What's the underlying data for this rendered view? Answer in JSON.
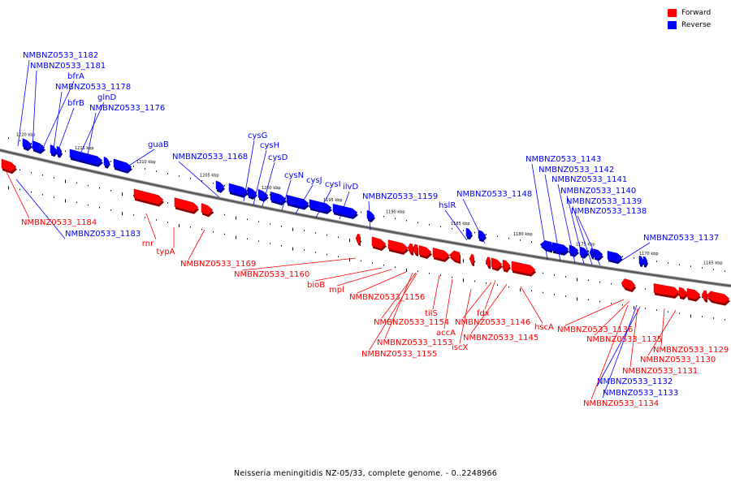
{
  "legend": {
    "forward": {
      "label": "Forward",
      "color": "#ff0000"
    },
    "reverse": {
      "label": "Reverse",
      "color": "#0000ff"
    }
  },
  "caption": "Neisseria meningitidis NZ-05/33, complete genome. - 0..2248966",
  "ticks": [
    "1220 kbp",
    "1215 kbp",
    "1210 kbp",
    "1205 kbp",
    "1200 kbp",
    "1195 kbp",
    "1190 kbp",
    "1185 kbp",
    "1180 kbp",
    "1175 kbp",
    "1170 kbp",
    "1165 kbp"
  ],
  "reverse_labels": [
    "NMBNZ0533_1182",
    "NMBNZ0533_1181",
    "bfrA",
    "NMBNZ0533_1178",
    "bfrB",
    "glnD",
    "NMBNZ0533_1176",
    "guaB",
    "NMBNZ0533_1168",
    "cysG",
    "cysH",
    "cysD",
    "cysN",
    "cysJ",
    "cysI",
    "ilvD",
    "NMBNZ0533_1159",
    "hslR",
    "NMBNZ0533_1148",
    "NMBNZ0533_1143",
    "NMBNZ0533_1142",
    "NMBNZ0533_1141",
    "NMBNZ0533_1140",
    "NMBNZ0533_1139",
    "NMBNZ0533_1138",
    "NMBNZ0533_1137",
    "NMBNZ0533_1183",
    "NMBNZ0533_1132",
    "NMBNZ0533_1133"
  ],
  "forward_labels": [
    "NMBNZ0533_1184",
    "rnr",
    "typA",
    "NMBNZ0533_1169",
    "NMBNZ0533_1160",
    "bioB",
    "mpl",
    "NMBNZ0533_1156",
    "tilS",
    "NMBNZ0533_1154",
    "accA",
    "NMBNZ0533_1153",
    "NMBNZ0533_1155",
    "iscX",
    "NMBNZ0533_1146",
    "NMBNZ0533_1145",
    "fdx",
    "hscA",
    "NMBNZ0533_1136",
    "NMBNZ0533_1135",
    "NMBNZ0533_1129",
    "NMBNZ0533_1130",
    "NMBNZ0533_1131",
    "NMBNZ0533_1134"
  ]
}
